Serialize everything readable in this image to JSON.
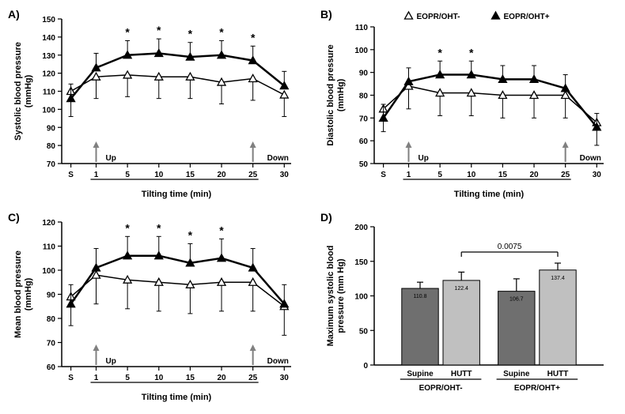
{
  "legend": {
    "series1": {
      "label": "EOPR/OHT-",
      "marker": "triangle-open",
      "color": "#000000"
    },
    "series2": {
      "label": "EOPR/OHT+",
      "marker": "triangle-filled",
      "color": "#000000"
    }
  },
  "xaxis_common": {
    "label": "Tilting time (min)",
    "ticks": [
      "S",
      "1",
      "5",
      "10",
      "15",
      "20",
      "25",
      "30"
    ],
    "up_at": "1",
    "down_at": "25",
    "up_label": "Up",
    "down_label": "Down"
  },
  "panelA": {
    "letter": "A)",
    "ylabel": "Systolic blood pressure\n(mmHg)",
    "ylim": [
      70,
      150
    ],
    "ytick_step": 10,
    "oht_minus": {
      "values": [
        110,
        118,
        119,
        118,
        118,
        115,
        117,
        108
      ],
      "err": [
        14,
        12,
        12,
        12,
        12,
        12,
        12,
        12
      ]
    },
    "oht_plus": {
      "values": [
        106,
        123,
        130,
        131,
        129,
        130,
        127,
        113
      ],
      "err": [
        8,
        8,
        8,
        8,
        8,
        8,
        8,
        8
      ]
    },
    "sig_at": [
      "5",
      "10",
      "15",
      "20",
      "25"
    ],
    "colors": {
      "line": "#000000",
      "bg": "#ffffff"
    }
  },
  "panelB": {
    "letter": "B)",
    "ylabel": "Diastolic blood pressure\n(mmHg)",
    "ylim": [
      50,
      110
    ],
    "ytick_step": 10,
    "oht_minus": {
      "values": [
        74,
        84,
        81,
        81,
        80,
        80,
        80,
        68
      ],
      "err": [
        10,
        10,
        10,
        10,
        10,
        10,
        10,
        10
      ]
    },
    "oht_plus": {
      "values": [
        70,
        86,
        89,
        89,
        87,
        87,
        83,
        66
      ],
      "err": [
        6,
        6,
        6,
        6,
        6,
        6,
        6,
        6
      ]
    },
    "sig_at": [
      "5",
      "10"
    ],
    "colors": {
      "line": "#000000",
      "bg": "#ffffff"
    }
  },
  "panelC": {
    "letter": "C)",
    "ylabel": "Mean blood pressure\n(mmHg)",
    "ylim": [
      60,
      120
    ],
    "ytick_step": 10,
    "oht_minus": {
      "values": [
        89,
        98,
        96,
        95,
        94,
        95,
        95,
        85
      ],
      "err": [
        12,
        12,
        12,
        12,
        12,
        12,
        12,
        12
      ]
    },
    "oht_plus": {
      "values": [
        86,
        101,
        106,
        106,
        103,
        105,
        101,
        86
      ],
      "err": [
        8,
        8,
        8,
        8,
        8,
        8,
        8,
        8
      ]
    },
    "sig_at": [
      "5",
      "10",
      "15",
      "20"
    ],
    "colors": {
      "line": "#000000",
      "bg": "#ffffff"
    }
  },
  "panelD": {
    "letter": "D)",
    "ylabel": "Maximum systolic blood\npressure (mm Hg)",
    "ylim": [
      0,
      200
    ],
    "ytick_step": 50,
    "groups": [
      "EOPR/OHT-",
      "EOPR/OHT+"
    ],
    "bars": [
      {
        "label": "Supine",
        "value": 110.8,
        "err": 9,
        "fill": "#6f6f6f"
      },
      {
        "label": "HUTT",
        "value": 122.4,
        "err": 12,
        "fill": "#c0c0c0"
      },
      {
        "label": "Supine",
        "value": 106.7,
        "err": 18,
        "fill": "#6f6f6f"
      },
      {
        "label": "HUTT",
        "value": 137.4,
        "err": 10,
        "fill": "#c0c0c0"
      }
    ],
    "pvalue": "0.0075",
    "colors": {
      "axis": "#000000",
      "bg": "#ffffff",
      "text": "#000000"
    },
    "bar_width": 0.7,
    "value_fontsize": 7
  },
  "style": {
    "axis_color": "#000000",
    "tick_fontsize": 10,
    "axis_label_fontsize": 11,
    "panel_letter_fontsize": 14,
    "sig_marker": "*",
    "arrow_color": "#808080",
    "line_width_minus": 1.5,
    "line_width_plus": 2.5,
    "marker_size": 5
  }
}
